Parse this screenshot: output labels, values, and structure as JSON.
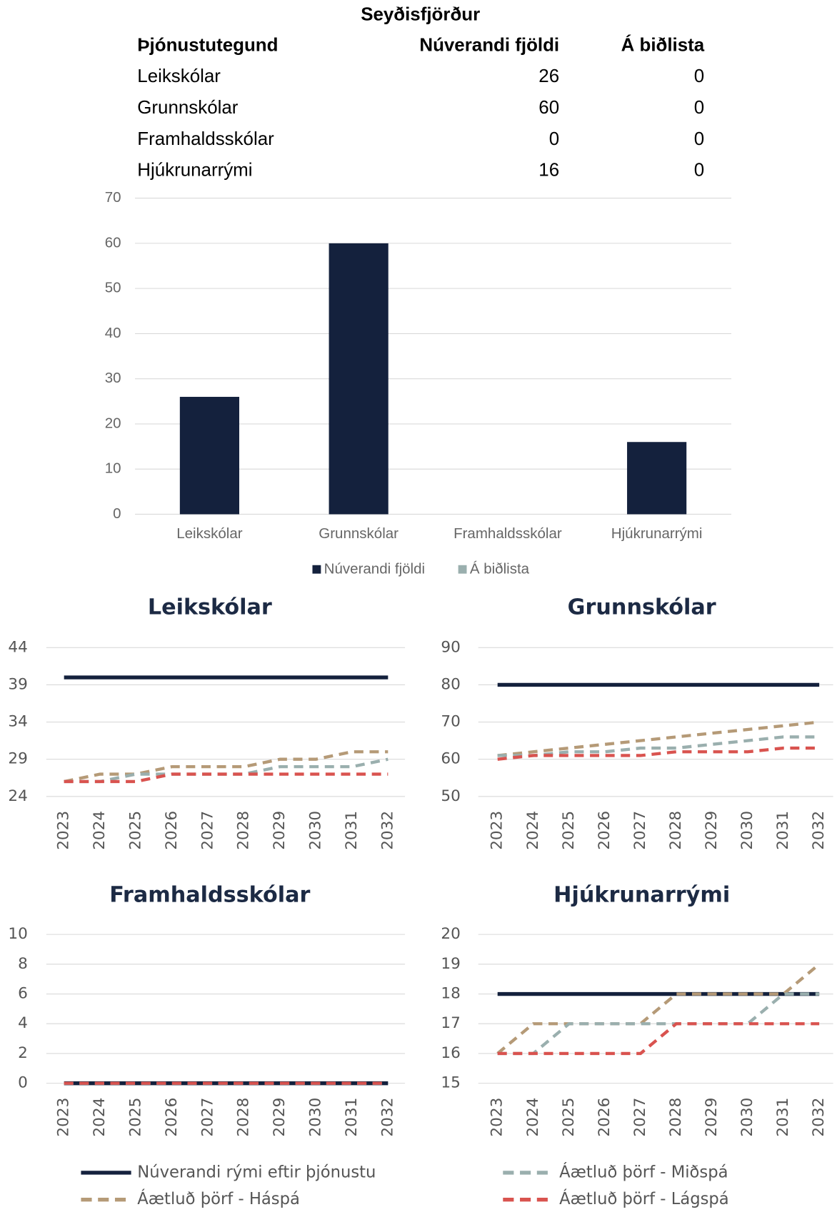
{
  "title": "Seyðisfjörður",
  "table": {
    "header": [
      "Þjónustutegund",
      "Núverandi fjöldi",
      "Á biðlista"
    ],
    "rows": [
      [
        "Leikskólar",
        "26",
        "0"
      ],
      [
        "Grunnskólar",
        "60",
        "0"
      ],
      [
        "Framhaldsskólar",
        "0",
        "0"
      ],
      [
        "Hjúkrunarrými",
        "16",
        "0"
      ]
    ]
  },
  "chart_data": [
    {
      "type": "bar",
      "categories": [
        "Leikskólar",
        "Grunnskólar",
        "Framhaldsskólar",
        "Hjúkrunarrými"
      ],
      "series": [
        {
          "name": "Núverandi fjöldi",
          "color": "#14213d",
          "values": [
            26,
            60,
            0,
            16
          ]
        },
        {
          "name": "Á biðlista",
          "color": "#9aafae",
          "values": [
            0,
            0,
            0,
            0
          ]
        }
      ],
      "ylim": [
        0,
        70
      ],
      "yticks": [
        0,
        10,
        20,
        30,
        40,
        50,
        60,
        70
      ],
      "grid": true,
      "legend": "bottom"
    },
    {
      "type": "line",
      "title": "Leikskólar",
      "categories": [
        "2023",
        "2024",
        "2025",
        "2026",
        "2027",
        "2028",
        "2029",
        "2030",
        "2031",
        "2032"
      ],
      "ylim": [
        24,
        44
      ],
      "yticks": [
        24,
        29,
        34,
        39,
        44
      ],
      "grid": true,
      "series": [
        {
          "name": "Núverandi rými eftir þjónustu",
          "color": "#14213d",
          "values": [
            40,
            40,
            40,
            40,
            40,
            40,
            40,
            40,
            40,
            40
          ]
        },
        {
          "name": "Áætluð þörf - Háspá",
          "color": "#b59a77",
          "values": [
            26,
            27,
            27,
            28,
            28,
            28,
            29,
            29,
            30,
            30
          ]
        },
        {
          "name": "Áætluð þörf - Miðspá",
          "color": "#9aafae",
          "values": [
            26,
            26,
            27,
            27,
            27,
            27,
            28,
            28,
            28,
            29
          ]
        },
        {
          "name": "Áætluð þörf - Lágspá",
          "color": "#d9534f",
          "values": [
            26,
            26,
            26,
            27,
            27,
            27,
            27,
            27,
            27,
            27
          ]
        }
      ]
    },
    {
      "type": "line",
      "title": "Grunnskólar",
      "categories": [
        "2023",
        "2024",
        "2025",
        "2026",
        "2027",
        "2028",
        "2029",
        "2030",
        "2031",
        "2032"
      ],
      "ylim": [
        50,
        90
      ],
      "yticks": [
        50,
        60,
        70,
        80,
        90
      ],
      "grid": true,
      "series": [
        {
          "name": "Núverandi rými eftir þjónustu",
          "color": "#14213d",
          "values": [
            80,
            80,
            80,
            80,
            80,
            80,
            80,
            80,
            80,
            80
          ]
        },
        {
          "name": "Áætluð þörf - Háspá",
          "color": "#b59a77",
          "values": [
            61,
            62,
            63,
            64,
            65,
            66,
            67,
            68,
            69,
            70
          ]
        },
        {
          "name": "Áætluð þörf - Miðspá",
          "color": "#9aafae",
          "values": [
            61,
            61,
            62,
            62,
            63,
            63,
            64,
            65,
            66,
            66
          ]
        },
        {
          "name": "Áætluð þörf - Lágspá",
          "color": "#d9534f",
          "values": [
            60,
            61,
            61,
            61,
            61,
            62,
            62,
            62,
            63,
            63
          ]
        }
      ]
    },
    {
      "type": "line",
      "title": "Framhaldsskólar",
      "categories": [
        "2023",
        "2024",
        "2025",
        "2026",
        "2027",
        "2028",
        "2029",
        "2030",
        "2031",
        "2032"
      ],
      "ylim": [
        0,
        10
      ],
      "yticks": [
        0,
        2,
        4,
        6,
        8,
        10
      ],
      "grid": true,
      "series": [
        {
          "name": "Núverandi rými eftir þjónustu",
          "color": "#14213d",
          "values": [
            0,
            0,
            0,
            0,
            0,
            0,
            0,
            0,
            0,
            0
          ]
        },
        {
          "name": "Áætluð þörf - Háspá",
          "color": "#b59a77",
          "values": [
            0,
            0,
            0,
            0,
            0,
            0,
            0,
            0,
            0,
            0
          ]
        },
        {
          "name": "Áætluð þörf - Miðspá",
          "color": "#9aafae",
          "values": [
            0,
            0,
            0,
            0,
            0,
            0,
            0,
            0,
            0,
            0
          ]
        },
        {
          "name": "Áætluð þörf - Lágspá",
          "color": "#d9534f",
          "values": [
            0,
            0,
            0,
            0,
            0,
            0,
            0,
            0,
            0,
            0
          ]
        }
      ]
    },
    {
      "type": "line",
      "title": "Hjúkrunarrými",
      "categories": [
        "2023",
        "2024",
        "2025",
        "2026",
        "2027",
        "2028",
        "2029",
        "2030",
        "2031",
        "2032"
      ],
      "ylim": [
        15,
        20
      ],
      "yticks": [
        15,
        16,
        17,
        18,
        19,
        20
      ],
      "grid": true,
      "series": [
        {
          "name": "Núverandi rými eftir þjónustu",
          "color": "#14213d",
          "values": [
            18,
            18,
            18,
            18,
            18,
            18,
            18,
            18,
            18,
            18
          ]
        },
        {
          "name": "Áætluð þörf - Háspá",
          "color": "#b59a77",
          "values": [
            16,
            17,
            17,
            17,
            17,
            18,
            18,
            18,
            18,
            19
          ]
        },
        {
          "name": "Áætluð þörf - Miðspá",
          "color": "#9aafae",
          "values": [
            16,
            16,
            17,
            17,
            17,
            17,
            17,
            17,
            18,
            18
          ]
        },
        {
          "name": "Áætluð þörf - Lágspá",
          "color": "#d9534f",
          "values": [
            16,
            16,
            16,
            16,
            16,
            17,
            17,
            17,
            17,
            17
          ]
        }
      ]
    }
  ]
}
